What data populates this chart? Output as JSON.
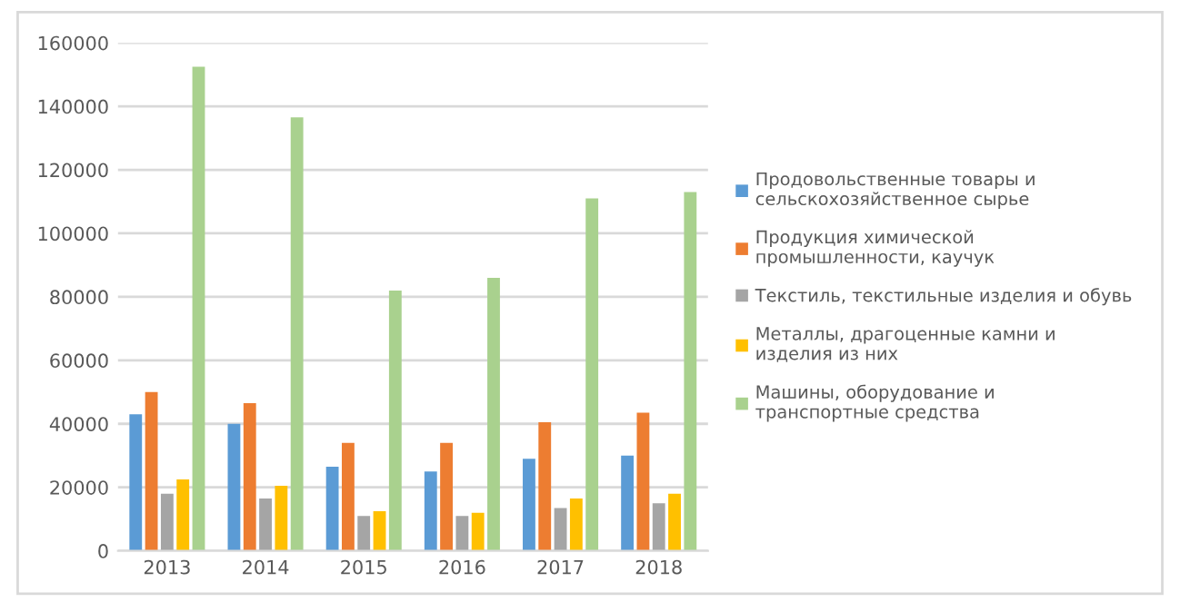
{
  "chart_data": {
    "type": "bar",
    "categories": [
      "2013",
      "2014",
      "2015",
      "2016",
      "2017",
      "2018"
    ],
    "series": [
      {
        "name": "Продовольственные товары и\nсельскохозяйственное сырье",
        "color": "#5b9bd5",
        "values": [
          43000,
          40000,
          26500,
          25000,
          29000,
          30000
        ]
      },
      {
        "name": "Продукция химической\nпромышленности, каучук",
        "color": "#ed7d31",
        "values": [
          50000,
          46500,
          34000,
          34000,
          40500,
          43500
        ]
      },
      {
        "name": "Текстиль, текстильные изделия и обувь",
        "color": "#a5a5a5",
        "values": [
          18000,
          16500,
          11000,
          11000,
          13500,
          15000
        ]
      },
      {
        "name": "Металлы, драгоценные камни и\nизделия из них",
        "color": "#ffc000",
        "values": [
          22500,
          20500,
          12500,
          12000,
          16500,
          18000
        ]
      },
      {
        "name": "Машины, оборудование и\nтранспортные средства",
        "color": "#a9d18e",
        "values": [
          152500,
          136500,
          82000,
          86000,
          111000,
          113000
        ]
      }
    ],
    "ylim": [
      0,
      160000
    ],
    "yticks": [
      0,
      20000,
      40000,
      60000,
      80000,
      100000,
      120000,
      140000,
      160000
    ],
    "grid": "y",
    "legend": "right"
  }
}
